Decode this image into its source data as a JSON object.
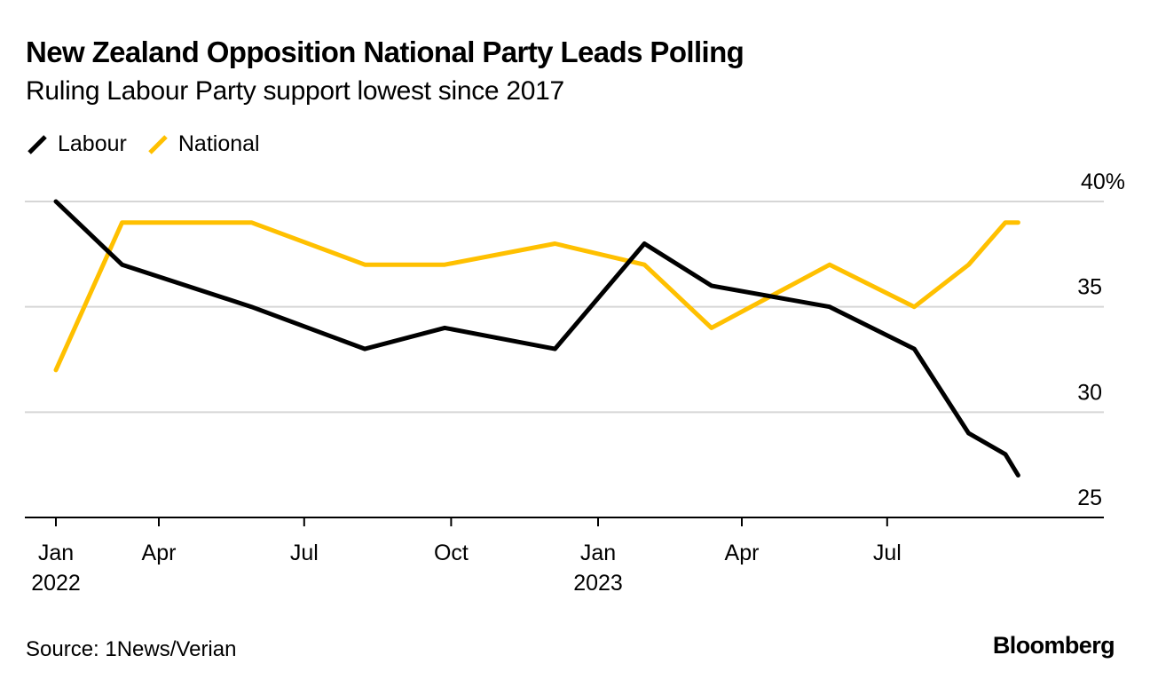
{
  "header": {
    "title": "New Zealand Opposition National Party Leads Polling",
    "subtitle": "Ruling Labour Party support lowest since 2017"
  },
  "legend": [
    {
      "label": "Labour",
      "color": "#000000"
    },
    {
      "label": "National",
      "color": "#FFC000"
    }
  ],
  "footer": {
    "source": "Source: 1News/Verian",
    "brand": "Bloomberg"
  },
  "chart_data": {
    "type": "line",
    "title": "New Zealand Opposition National Party Leads Polling",
    "subtitle": "Ruling Labour Party support lowest since 2017",
    "xlabel": "",
    "ylabel": "",
    "x": [
      "2022-01-26",
      "2022-03-09",
      "2022-05-29",
      "2022-08-08",
      "2022-09-27",
      "2022-12-05",
      "2023-01-30",
      "2023-03-13",
      "2023-05-26",
      "2023-07-18",
      "2023-08-21",
      "2023-09-13",
      "2023-09-21"
    ],
    "series": [
      {
        "name": "Labour",
        "color": "#000000",
        "values": [
          40,
          37,
          35,
          33,
          34,
          33,
          38,
          36,
          35,
          33,
          29,
          28,
          27
        ]
      },
      {
        "name": "National",
        "color": "#FFC000",
        "values": [
          32,
          39,
          39,
          37,
          37,
          38,
          37,
          34,
          37,
          35,
          37,
          39,
          39
        ]
      }
    ],
    "ylim": [
      25,
      40
    ],
    "xlim": [
      "2022-01-26",
      "2023-11-30"
    ],
    "y_ticks": [
      {
        "value": 40,
        "label": "40%"
      },
      {
        "value": 35,
        "label": "35"
      },
      {
        "value": 30,
        "label": "30"
      },
      {
        "value": 25,
        "label": "25"
      }
    ],
    "x_ticks": [
      {
        "date": "2022-01-26",
        "label": "Jan",
        "sublabel": "2022"
      },
      {
        "date": "2022-04-01",
        "label": "Apr",
        "sublabel": ""
      },
      {
        "date": "2022-07-01",
        "label": "Jul",
        "sublabel": ""
      },
      {
        "date": "2022-10-01",
        "label": "Oct",
        "sublabel": ""
      },
      {
        "date": "2023-01-01",
        "label": "Jan",
        "sublabel": "2023"
      },
      {
        "date": "2023-04-01",
        "label": "Apr",
        "sublabel": ""
      },
      {
        "date": "2023-07-01",
        "label": "Jul",
        "sublabel": ""
      }
    ],
    "grid": true,
    "y_axis_side": "right",
    "legend_position": "top-left"
  }
}
